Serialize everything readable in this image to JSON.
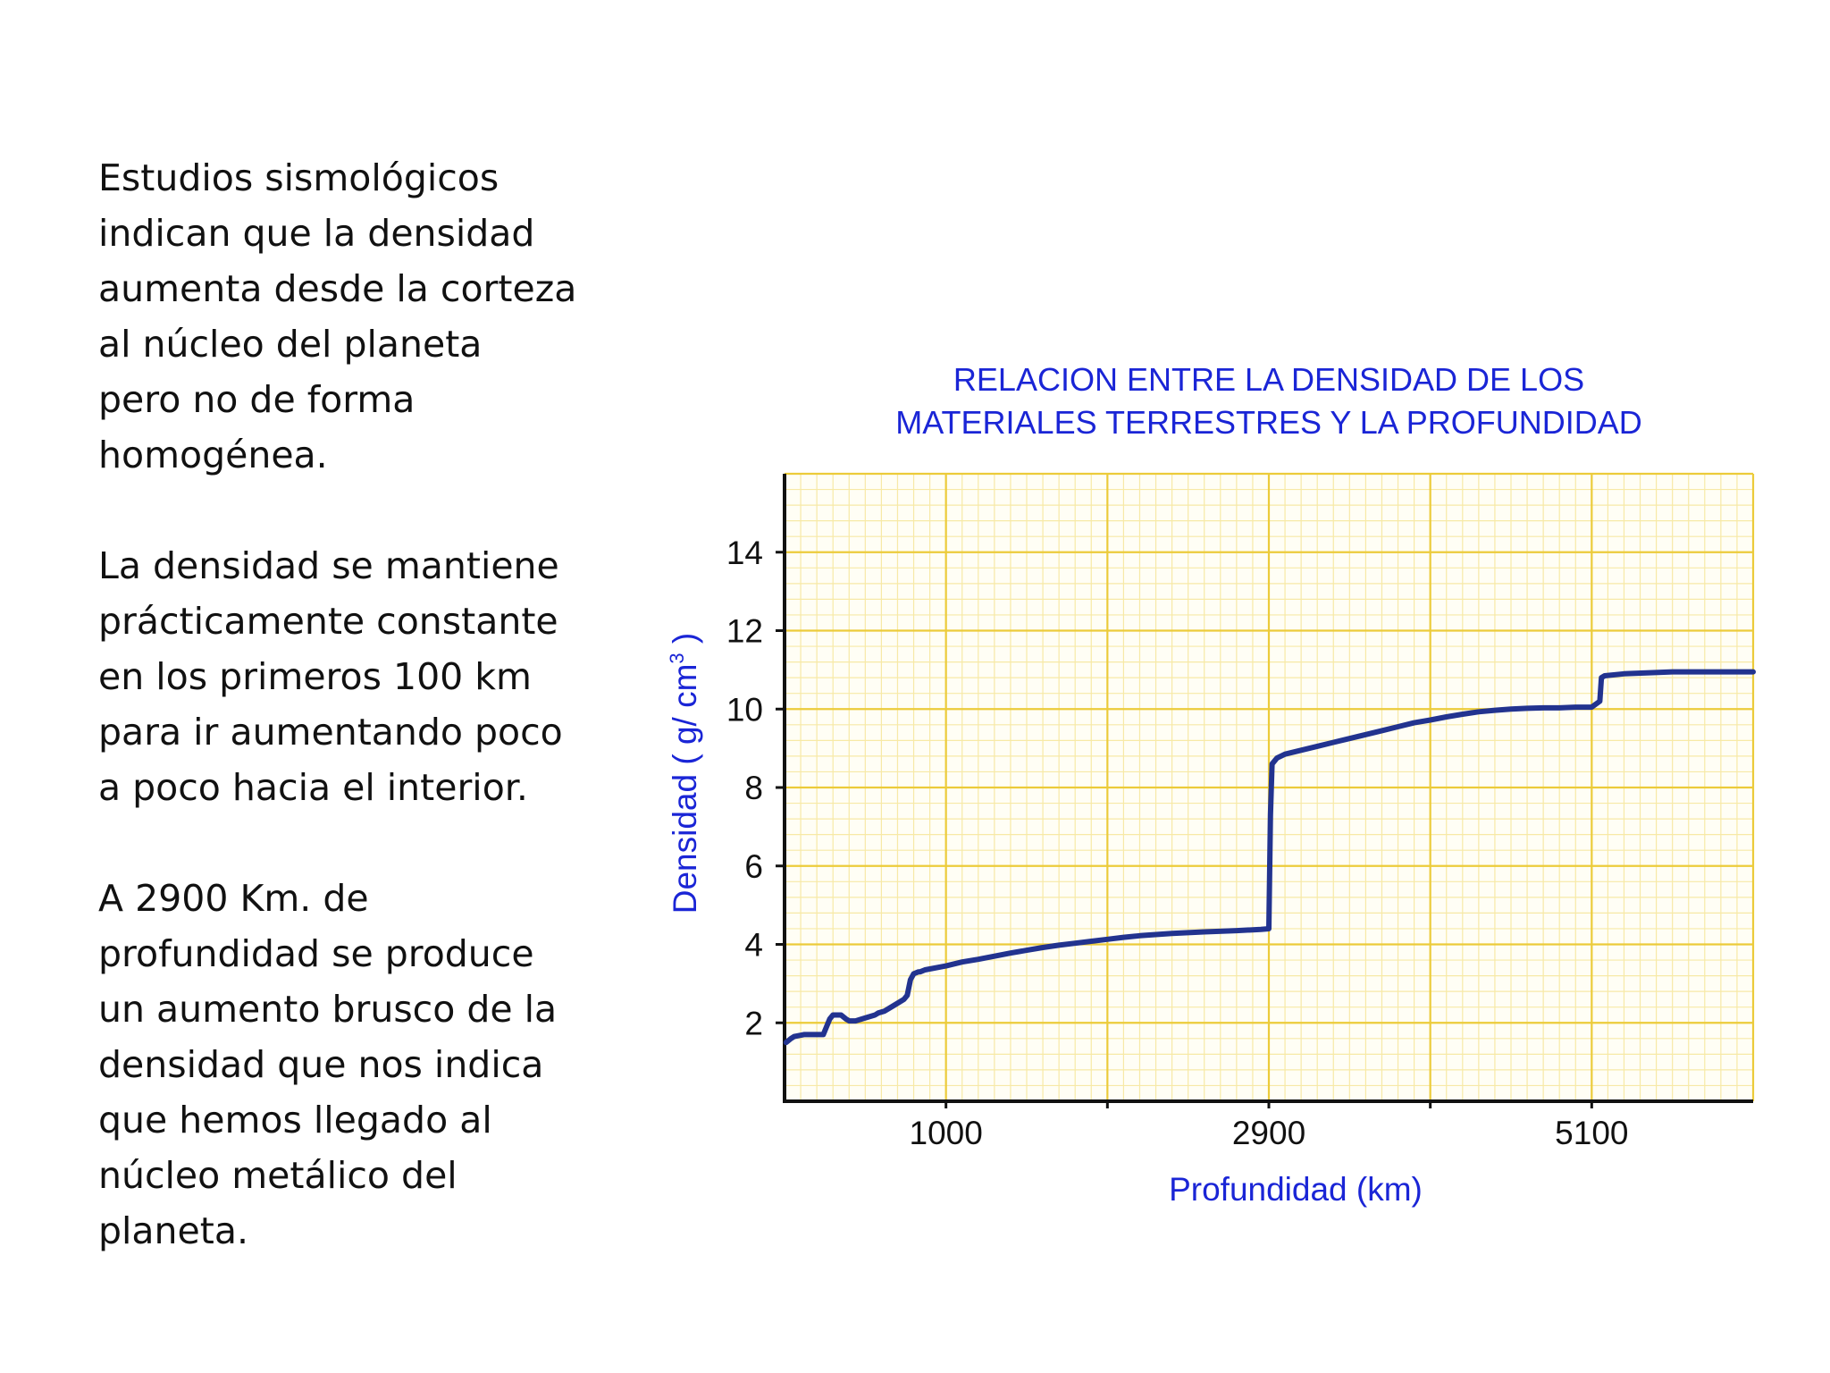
{
  "text": {
    "paragraph_1": "Estudios sismológicos\nindican que la densidad\naumenta desde la corteza\nal núcleo del planeta\npero no de forma\nhomogénea.",
    "paragraph_2": "La densidad se mantiene\nprácticamente constante\nen los primeros 100 km\npara ir aumentando poco\na poco hacia el interior.",
    "paragraph_3": "A 2900 Km. de\nprofundidad se produce\nun aumento brusco de la\ndensidad que nos indica\nque hemos llegado al\nnúcleo metálico del\nplaneta."
  },
  "colors": {
    "grid_minor": "#f7e9a6",
    "grid_major": "#eccb3a",
    "line": "#22338f",
    "axis": "#111111",
    "label": "#1a25d6"
  },
  "chart_data": {
    "type": "line",
    "title_line1": "RELACION ENTRE LA DENSIDAD DE LOS",
    "title_line2": "MATERIALES TERRESTRES Y LA PROFUNDIDAD",
    "xlabel": "Profundidad (km)",
    "ylabel": "Densidad ( g/ cm",
    "ylabel_sup": "3",
    "ylabel_end": " )",
    "xlim": [
      0,
      6000
    ],
    "ylim": [
      0,
      16
    ],
    "xticks": [
      {
        "pos": 1000,
        "label": "1000"
      },
      {
        "pos": 3000,
        "label": "2900"
      },
      {
        "pos": 5000,
        "label": "5100"
      }
    ],
    "yticks": [
      {
        "pos": 2,
        "label": "2"
      },
      {
        "pos": 4,
        "label": "4"
      },
      {
        "pos": 6,
        "label": "6"
      },
      {
        "pos": 8,
        "label": "8"
      },
      {
        "pos": 10,
        "label": "10"
      },
      {
        "pos": 12,
        "label": "12"
      },
      {
        "pos": 14,
        "label": "14"
      }
    ],
    "series": [
      {
        "name": "Densidad",
        "x": [
          10,
          40,
          60,
          120,
          240,
          260,
          280,
          300,
          350,
          380,
          400,
          440,
          480,
          560,
          580,
          620,
          680,
          740,
          760,
          780,
          800,
          830,
          840,
          870,
          1000,
          1100,
          1200,
          1300,
          1400,
          1500,
          1600,
          1700,
          1800,
          1900,
          2000,
          2100,
          2200,
          2300,
          2400,
          2600,
          2800,
          2950,
          3000,
          3010,
          3020,
          3040,
          3050,
          3100,
          3200,
          3300,
          3400,
          3500,
          3600,
          3700,
          3800,
          3900,
          4000,
          4100,
          4200,
          4300,
          4400,
          4500,
          4600,
          4700,
          4800,
          4900,
          5000,
          5050,
          5060,
          5080,
          5200,
          5500,
          6000
        ],
        "y": [
          1.5,
          1.6,
          1.65,
          1.7,
          1.7,
          1.9,
          2.1,
          2.2,
          2.2,
          2.1,
          2.05,
          2.05,
          2.1,
          2.2,
          2.25,
          2.3,
          2.45,
          2.6,
          2.7,
          3.1,
          3.25,
          3.3,
          3.3,
          3.35,
          3.45,
          3.55,
          3.62,
          3.7,
          3.78,
          3.85,
          3.92,
          3.98,
          4.03,
          4.08,
          4.13,
          4.18,
          4.22,
          4.25,
          4.28,
          4.32,
          4.35,
          4.38,
          4.4,
          7.3,
          8.6,
          8.7,
          8.75,
          8.85,
          8.95,
          9.05,
          9.15,
          9.25,
          9.35,
          9.45,
          9.55,
          9.65,
          9.72,
          9.8,
          9.87,
          9.93,
          9.97,
          10.0,
          10.02,
          10.03,
          10.03,
          10.05,
          10.05,
          10.2,
          10.8,
          10.85,
          10.9,
          10.95,
          10.95
        ]
      }
    ]
  }
}
